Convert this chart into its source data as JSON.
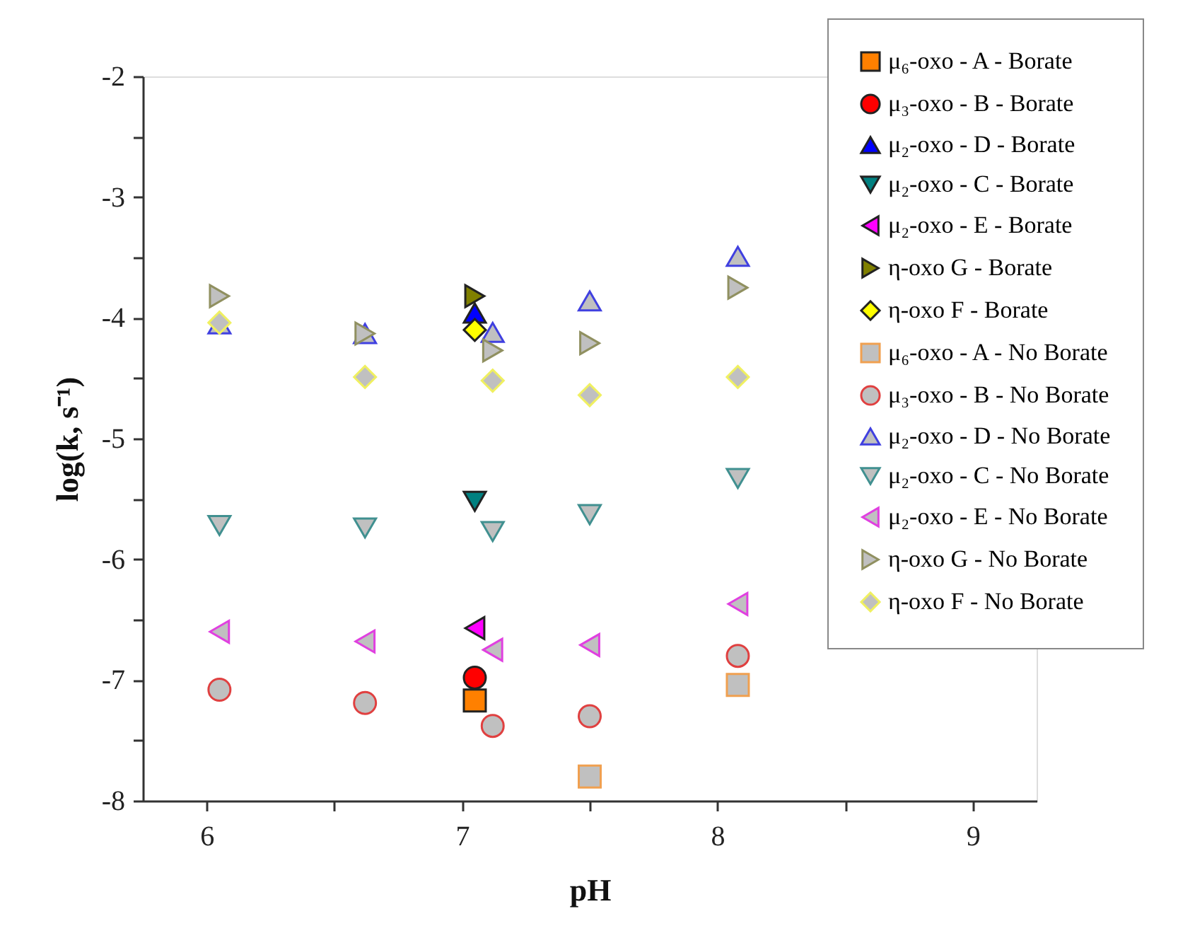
{
  "chart_data": {
    "type": "scatter",
    "xlabel": "pH",
    "ylabel": "log(k, s⁻¹)",
    "xlim": [
      5.75,
      9.25
    ],
    "ylim": [
      -8,
      -2
    ],
    "xticks": [
      6,
      {
        "value": 6.5,
        "label": null
      },
      7,
      {
        "value": 7.5,
        "label": null
      },
      8,
      {
        "value": 8.5,
        "label": null
      },
      9
    ],
    "yticks": [
      -8,
      {
        "value": -7.5,
        "label": null
      },
      -7,
      {
        "value": -6.5,
        "label": null
      },
      -6,
      {
        "value": -5.5,
        "label": null
      },
      -5,
      {
        "value": -4.5,
        "label": null
      },
      -4,
      {
        "value": -3.5,
        "label": null
      },
      -3,
      {
        "value": -2.5,
        "label": null
      },
      -2
    ],
    "grid": false,
    "legend": "right",
    "series": [
      {
        "name": "μ₆-oxo - A - Borate",
        "color": "#ff8000",
        "marker": "square",
        "x": [
          7.05
        ],
        "values": [
          -7.17
        ]
      },
      {
        "name": "μ₃-oxo - B - Borate",
        "color": "#ff0000",
        "marker": "circle",
        "x": [
          7.05
        ],
        "values": [
          -6.98
        ]
      },
      {
        "name": "μ₂-oxo - D - Borate",
        "color": "#0000ff",
        "marker": "triangle-up",
        "x": [
          7.05
        ],
        "values": [
          -3.96
        ]
      },
      {
        "name": "μ₂-oxo - C - Borate",
        "color": "#008080",
        "marker": "triangle-down",
        "x": [
          7.05
        ],
        "values": [
          -5.52
        ]
      },
      {
        "name": "μ₂-oxo - E - Borate",
        "color": "#ff00ff",
        "marker": "triangle-left",
        "x": [
          7.05
        ],
        "values": [
          -6.57
        ]
      },
      {
        "name": "η-oxo G - Borate",
        "color": "#808000",
        "marker": "triangle-right",
        "x": [
          7.05
        ],
        "values": [
          -3.82
        ]
      },
      {
        "name": "η-oxo F - Borate",
        "color": "#ffff00",
        "marker": "diamond",
        "x": [
          7.05
        ],
        "values": [
          -4.1
        ]
      },
      {
        "name": "μ₆-oxo - A - No Borate",
        "color": "#f0a050",
        "marker": "square",
        "x": [
          7.5,
          8.08
        ],
        "values": [
          -7.8,
          -7.04
        ]
      },
      {
        "name": "μ₃-oxo - B - No Borate",
        "color": "#e04040",
        "marker": "circle",
        "x": [
          6.05,
          6.62,
          7.12,
          7.5,
          8.08
        ],
        "values": [
          -7.08,
          -7.19,
          -7.38,
          -7.3,
          -6.8
        ]
      },
      {
        "name": "μ₂-oxo - D - No Borate",
        "color": "#4040e0",
        "marker": "triangle-up",
        "x": [
          6.05,
          6.62,
          7.12,
          7.5,
          8.08
        ],
        "values": [
          -4.05,
          -4.13,
          -4.12,
          -3.86,
          -3.49
        ]
      },
      {
        "name": "μ₂-oxo - C - No Borate",
        "color": "#409090",
        "marker": "triangle-down",
        "x": [
          6.05,
          6.62,
          7.12,
          7.5,
          8.08
        ],
        "values": [
          -5.72,
          -5.74,
          -5.77,
          -5.63,
          -5.33
        ]
      },
      {
        "name": "μ₂-oxo - E - No Borate",
        "color": "#e040e0",
        "marker": "triangle-left",
        "x": [
          6.05,
          6.62,
          7.12,
          7.5,
          8.08
        ],
        "values": [
          -6.6,
          -6.68,
          -6.75,
          -6.71,
          -6.37
        ]
      },
      {
        "name": "η-oxo G - No Borate",
        "color": "#909060",
        "marker": "triangle-right",
        "x": [
          6.05,
          6.62,
          7.12,
          7.5,
          8.08
        ],
        "values": [
          -3.82,
          -4.13,
          -4.27,
          -4.21,
          -3.75
        ]
      },
      {
        "name": "η-oxo F - No Borate",
        "color": "#f0f060",
        "marker": "diamond",
        "x": [
          6.05,
          6.62,
          7.12,
          7.5,
          8.08
        ],
        "values": [
          -4.04,
          -4.49,
          -4.52,
          -4.64,
          -4.49
        ]
      }
    ]
  }
}
